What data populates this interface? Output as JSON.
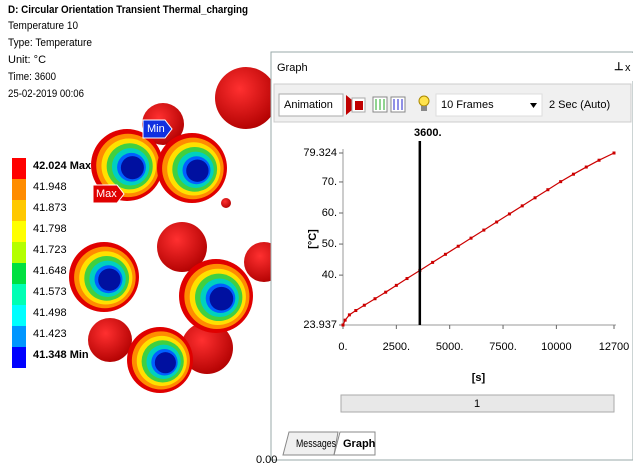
{
  "header": {
    "title": "D: Circular Orientation Transient Thermal_charging",
    "lines": [
      "Temperature 10",
      "Type: Temperature",
      "Unit: °C",
      "Time: 3600",
      "25-02-2019 00:06"
    ]
  },
  "legend": {
    "items": [
      {
        "label": "42.024 Max",
        "color": "#ff0000"
      },
      {
        "label": "41.948",
        "color": "#ff8c00"
      },
      {
        "label": "41.873",
        "color": "#ffc800"
      },
      {
        "label": "41.798",
        "color": "#ffff00"
      },
      {
        "label": "41.723",
        "color": "#b4ff00"
      },
      {
        "label": "41.648",
        "color": "#00e040"
      },
      {
        "label": "41.573",
        "color": "#00ffb4"
      },
      {
        "label": "41.498",
        "color": "#00ffff"
      },
      {
        "label": "41.423",
        "color": "#0096ff"
      },
      {
        "label": "41.348 Min",
        "color": "#0000ff"
      }
    ]
  },
  "viewport": {
    "min_tag": "Min",
    "max_tag": "Max",
    "footer_fragment": "0.00"
  },
  "panel": {
    "title": "Graph",
    "close": "x",
    "animation": "Animation",
    "frames": "10 Frames",
    "speed": "2 Sec (Auto)",
    "slider": "1",
    "tabs": [
      "Messages",
      "Graph"
    ]
  },
  "chart_data": {
    "type": "line",
    "x": [
      0,
      100,
      300,
      600,
      1000,
      1500,
      2000,
      2500,
      3000,
      3600,
      4200,
      4800,
      5400,
      6000,
      6600,
      7200,
      7800,
      8400,
      9000,
      9600,
      10200,
      10800,
      11400,
      12000,
      12700
    ],
    "values": [
      23.937,
      25.5,
      27.2,
      28.6,
      30.3,
      32.4,
      34.5,
      36.7,
      38.9,
      41.5,
      44.1,
      46.7,
      49.3,
      51.9,
      54.5,
      57.1,
      59.7,
      62.3,
      64.9,
      67.5,
      70.1,
      72.5,
      74.8,
      77.0,
      79.324
    ],
    "color": "#cc0000",
    "xlim": [
      0,
      12700
    ],
    "ylim": [
      23.937,
      79.324
    ],
    "xticks": [
      {
        "value": 0,
        "label": "0."
      },
      {
        "value": 2500,
        "label": "2500."
      },
      {
        "value": 5000,
        "label": "5000."
      },
      {
        "value": 7500,
        "label": "7500."
      },
      10000,
      12700
    ],
    "yticks": [
      23.937,
      {
        "value": 40,
        "label": "40."
      },
      {
        "value": 50,
        "label": "50."
      },
      {
        "value": 60,
        "label": "60."
      },
      {
        "value": 70,
        "label": "70."
      },
      79.324
    ],
    "y_label": "[°C]",
    "x_label": "[s]",
    "marker": {
      "value": 3600,
      "label": "3600."
    }
  }
}
